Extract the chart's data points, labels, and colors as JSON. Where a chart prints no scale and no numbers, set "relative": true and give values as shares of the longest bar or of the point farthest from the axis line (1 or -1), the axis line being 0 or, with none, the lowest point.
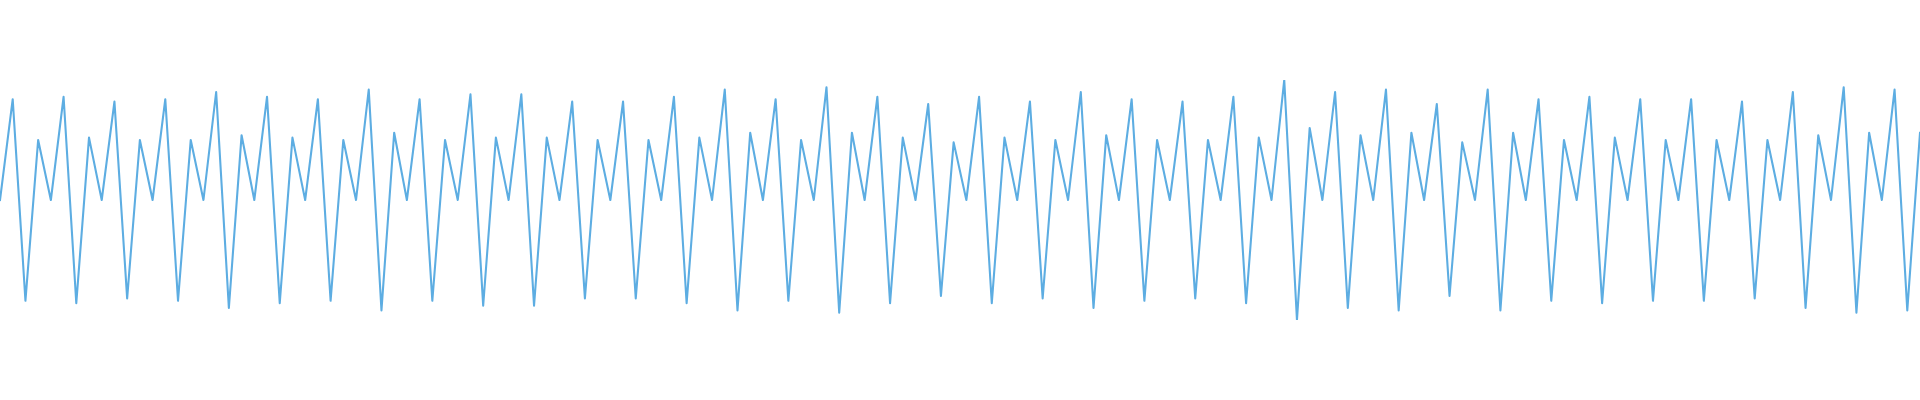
{
  "chart_data": {
    "type": "line",
    "relative": true,
    "color": "#5dade2",
    "categories": [
      null,
      null,
      null,
      null,
      null,
      null,
      null,
      null,
      null,
      null,
      null,
      null,
      null,
      null,
      null,
      null,
      null,
      null,
      null,
      null,
      null,
      null,
      null,
      null,
      null,
      null,
      null,
      null,
      null,
      null,
      null,
      null,
      null,
      null,
      null,
      null,
      null,
      null,
      null,
      null,
      null,
      null,
      null,
      null,
      null,
      null,
      null,
      null,
      null,
      null,
      null,
      null,
      null,
      null,
      null,
      null,
      null,
      null,
      null,
      null,
      null,
      null,
      null,
      null,
      null,
      null,
      null,
      null,
      null,
      null,
      null,
      null,
      null,
      null,
      null,
      null,
      null,
      null,
      null,
      null,
      null,
      null,
      null,
      null,
      null,
      null,
      null,
      null,
      null,
      null,
      null,
      null,
      null,
      null,
      null,
      null,
      null,
      null,
      null,
      null,
      null,
      null,
      null,
      null,
      null,
      null,
      null,
      null,
      null,
      null,
      null,
      null,
      null,
      null,
      null,
      null,
      null,
      null,
      null,
      null,
      null,
      null,
      null,
      null,
      null,
      null,
      null,
      null,
      null,
      null,
      null,
      null,
      null,
      null,
      null,
      null,
      null,
      null,
      null,
      null,
      null,
      null,
      null,
      null,
      null,
      null,
      null,
      null,
      null,
      null,
      null,
      null
    ],
    "values": [
      0.5,
      0.92,
      0.08,
      0.75,
      0.5,
      0.93,
      0.07,
      0.76,
      0.5,
      0.91,
      0.09,
      0.75,
      0.5,
      0.92,
      0.08,
      0.75,
      0.5,
      0.95,
      0.05,
      0.77,
      0.5,
      0.93,
      0.07,
      0.76,
      0.5,
      0.92,
      0.08,
      0.75,
      0.5,
      0.96,
      0.04,
      0.78,
      0.5,
      0.92,
      0.08,
      0.75,
      0.5,
      0.94,
      0.06,
      0.76,
      0.5,
      0.94,
      0.06,
      0.76,
      0.5,
      0.91,
      0.09,
      0.75,
      0.5,
      0.91,
      0.09,
      0.75,
      0.5,
      0.93,
      0.07,
      0.76,
      0.5,
      0.96,
      0.04,
      0.78,
      0.5,
      0.92,
      0.08,
      0.75,
      0.5,
      0.97,
      0.03,
      0.78,
      0.5,
      0.93,
      0.07,
      0.76,
      0.5,
      0.9,
      0.1,
      0.74,
      0.5,
      0.93,
      0.07,
      0.76,
      0.5,
      0.91,
      0.09,
      0.75,
      0.5,
      0.95,
      0.05,
      0.77,
      0.5,
      0.92,
      0.08,
      0.75,
      0.5,
      0.91,
      0.09,
      0.75,
      0.5,
      0.93,
      0.07,
      0.76,
      0.5,
      1,
      0,
      0.8,
      0.5,
      0.95,
      0.05,
      0.77,
      0.5,
      0.96,
      0.04,
      0.78,
      0.5,
      0.9,
      0.1,
      0.74,
      0.5,
      0.96,
      0.04,
      0.78,
      0.5,
      0.92,
      0.08,
      0.75,
      0.5,
      0.93,
      0.07,
      0.76,
      0.5,
      0.92,
      0.08,
      0.75,
      0.5,
      0.92,
      0.08,
      0.75,
      0.5,
      0.91,
      0.09,
      0.75,
      0.5,
      0.95,
      0.05,
      0.77,
      0.5,
      0.97,
      0.03,
      0.78,
      0.5,
      0.96,
      0.04,
      0.78
    ]
  }
}
